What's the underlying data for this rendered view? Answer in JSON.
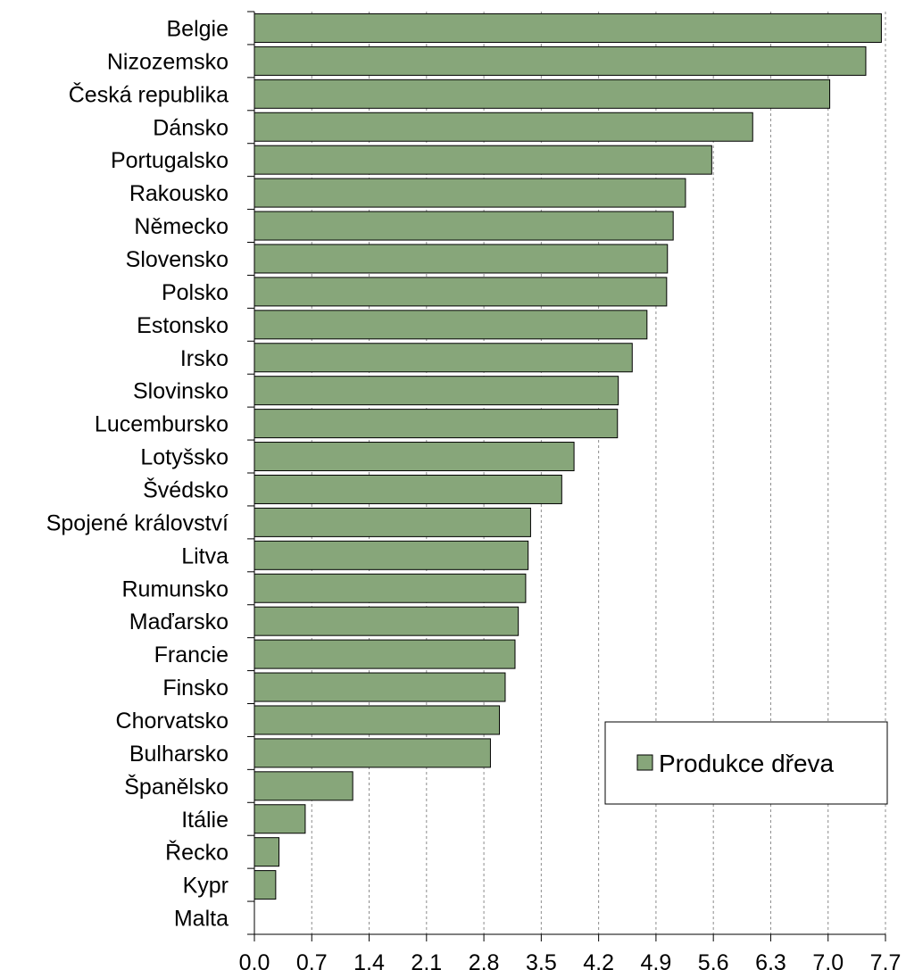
{
  "chart_data": {
    "type": "bar",
    "orientation": "horizontal",
    "title": "",
    "xlabel": "",
    "ylabel": "",
    "categories": [
      "Belgie",
      "Nizozemsko",
      "Česká republika",
      "Dánsko",
      "Portugalsko",
      "Rakousko",
      "Německo",
      "Slovensko",
      "Polsko",
      "Estonsko",
      "Irsko",
      "Slovinsko",
      "Lucembursko",
      "Lotyšsko",
      "Švédsko",
      "Spojené království",
      "Litva",
      "Rumunsko",
      "Maďarsko",
      "Francie",
      "Finsko",
      "Chorvatsko",
      "Bulharsko",
      "Španělsko",
      "Itálie",
      "Řecko",
      "Kypr",
      "Malta"
    ],
    "series": [
      {
        "name": "Produkce dřeva",
        "values": [
          7.65,
          7.46,
          7.02,
          6.08,
          5.58,
          5.26,
          5.11,
          5.04,
          5.03,
          4.79,
          4.61,
          4.44,
          4.43,
          3.9,
          3.75,
          3.37,
          3.34,
          3.31,
          3.22,
          3.18,
          3.06,
          2.99,
          2.88,
          1.2,
          0.62,
          0.3,
          0.26,
          0.0
        ]
      }
    ],
    "xlim": [
      0.0,
      7.7
    ],
    "xticks": [
      "0,0",
      "0,7",
      "1,4",
      "2,1",
      "2,8",
      "3,5",
      "4,2",
      "4,9",
      "5,6",
      "6,3",
      "7,0",
      "7,7"
    ],
    "grid": "vertical dashed",
    "legend_position": "bottom-right",
    "colors": {
      "bar_fill": "#87a67a",
      "bar_stroke": "#000000",
      "grid": "#8c8c8c"
    }
  }
}
